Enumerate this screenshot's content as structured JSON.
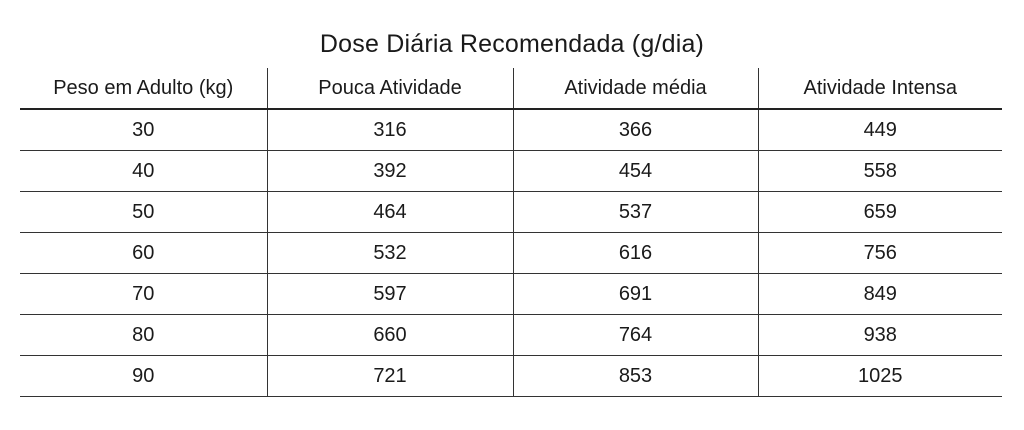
{
  "title": "Dose Diária Recomendada (g/dia)",
  "headers": [
    "Peso em Adulto (kg)",
    "Pouca Atividade",
    "Atividade média",
    "Atividade Intensa"
  ],
  "rows": [
    [
      "30",
      "316",
      "366",
      "449"
    ],
    [
      "40",
      "392",
      "454",
      "558"
    ],
    [
      "50",
      "464",
      "537",
      "659"
    ],
    [
      "60",
      "532",
      "616",
      "756"
    ],
    [
      "70",
      "597",
      "691",
      "849"
    ],
    [
      "80",
      "660",
      "764",
      "938"
    ],
    [
      "90",
      "721",
      "853",
      "1025"
    ]
  ]
}
